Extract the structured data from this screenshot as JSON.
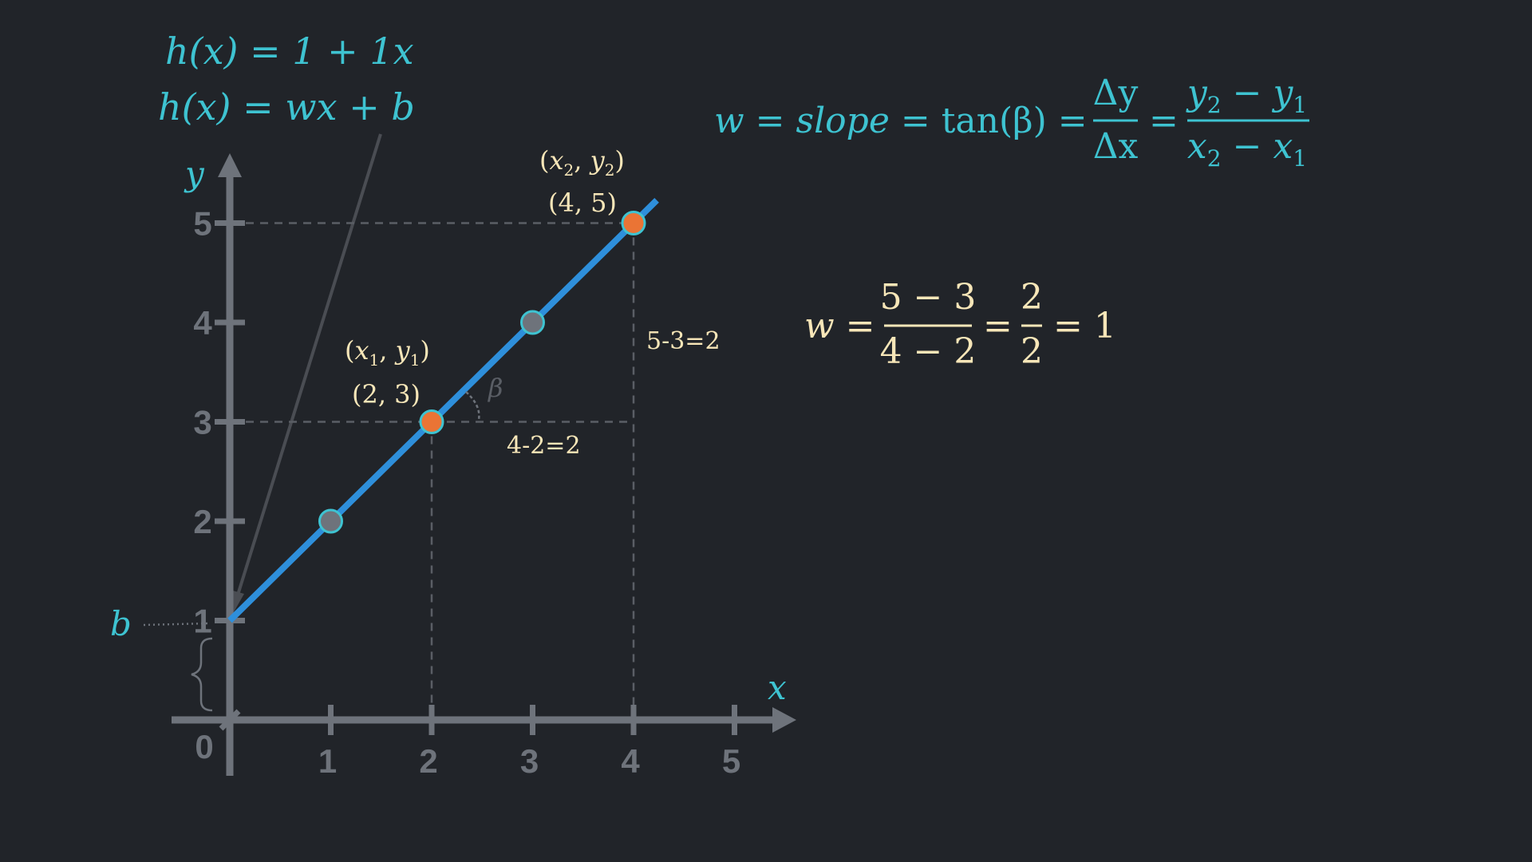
{
  "colors": {
    "background": "#212429",
    "axis": "#6e737b",
    "line": "#2e8fdb",
    "highlight_point": "#ea7435",
    "plain_point": "#6e737b",
    "point_outline": "#3ec3d1",
    "accent_text": "#3ec3d1",
    "annotation_text": "#f7e6b8",
    "guide_line": "#5a5e65"
  },
  "formulas": {
    "h_specific": {
      "lhs": "h(x)",
      "eq": "=",
      "rhs": "1 + 1x"
    },
    "h_general": {
      "lhs": "h(x)",
      "eq": "=",
      "rhs": "wx + b"
    },
    "slope": {
      "w": "w",
      "slope": "slope",
      "tan": "tan(β)",
      "dy": "Δy",
      "dx": "Δx",
      "num_a": "y",
      "num_a_sub": "2",
      "num_minus": "−",
      "num_b": "y",
      "num_b_sub": "1",
      "den_a": "x",
      "den_a_sub": "2",
      "den_minus": "−",
      "den_b": "x",
      "den_b_sub": "1"
    },
    "compute": {
      "w": "w",
      "num": "5 − 3",
      "den": "4 − 2",
      "num2": "2",
      "den2": "2",
      "result": "1"
    }
  },
  "labels": {
    "x_axis": "x",
    "y_axis": "y",
    "intercept": "b",
    "origin": "0",
    "beta": "β",
    "dy_annotation": "5-3=2",
    "dx_annotation": "4-2=2",
    "p1_symbol": {
      "x": "x",
      "xs": "1",
      "y": "y",
      "ys": "1"
    },
    "p2_symbol": {
      "x": "x",
      "xs": "2",
      "y": "y",
      "ys": "2"
    },
    "p1_coords": "(2, 3)",
    "p2_coords": "(4, 5)"
  },
  "chart_data": {
    "type": "line",
    "x_ticks": [
      1,
      2,
      3,
      4,
      5
    ],
    "y_ticks": [
      1,
      2,
      3,
      4,
      5
    ],
    "xlim": [
      0,
      5.5
    ],
    "ylim": [
      0,
      5.5
    ],
    "series": [
      {
        "equation": "h(x) = 1 + 1x",
        "x": [
          0,
          4.23
        ],
        "y": [
          1,
          5.23
        ]
      }
    ],
    "points": [
      {
        "x": 1,
        "y": 2,
        "highlight": false
      },
      {
        "x": 2,
        "y": 3,
        "highlight": true,
        "label": "(2, 3)"
      },
      {
        "x": 3,
        "y": 4,
        "highlight": false
      },
      {
        "x": 4,
        "y": 5,
        "highlight": true,
        "label": "(4, 5)"
      }
    ]
  }
}
